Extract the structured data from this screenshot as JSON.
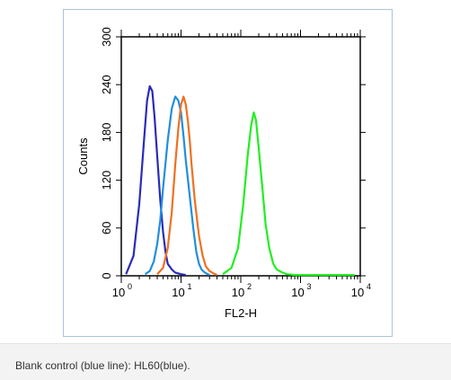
{
  "chart_data": {
    "type": "line",
    "title": "",
    "xlabel": "FL2-H",
    "ylabel": "Counts",
    "x_scale": "log",
    "xlim": [
      1,
      10000
    ],
    "ylim": [
      0,
      300
    ],
    "x_ticks": [
      {
        "value": 1,
        "base": "10",
        "exp": "0"
      },
      {
        "value": 10,
        "base": "10",
        "exp": "1"
      },
      {
        "value": 100,
        "base": "10",
        "exp": "2"
      },
      {
        "value": 1000,
        "base": "10",
        "exp": "3"
      },
      {
        "value": 10000,
        "base": "10",
        "exp": "4"
      }
    ],
    "y_ticks": [
      "0",
      "60",
      "120",
      "180",
      "240",
      "300"
    ],
    "grid": false,
    "legend": "none",
    "series": [
      {
        "color": "#2b2bb8",
        "x": [
          1.2,
          1.6,
          2.0,
          2.4,
          2.7,
          3.0,
          3.3,
          3.6,
          4.0,
          4.5,
          5.0,
          5.5,
          6.0,
          7.0,
          8.0,
          10.0,
          12.0
        ],
        "y": [
          2,
          25,
          90,
          170,
          220,
          238,
          232,
          200,
          150,
          95,
          55,
          30,
          15,
          8,
          4,
          2,
          1
        ]
      },
      {
        "color": "#1f8fe0",
        "x": [
          2.5,
          3.0,
          3.5,
          4.0,
          4.5,
          5.0,
          6.0,
          7.0,
          8.0,
          9.0,
          10.0,
          11.0,
          12.0,
          14.0,
          16.0,
          18.0,
          20.0,
          22.0,
          25.0,
          30.0
        ],
        "y": [
          2,
          6,
          18,
          40,
          70,
          110,
          170,
          210,
          225,
          220,
          205,
          175,
          145,
          100,
          60,
          30,
          15,
          8,
          4,
          1
        ]
      },
      {
        "color": "#f07020",
        "x": [
          4.0,
          5.0,
          6.0,
          7.0,
          8.0,
          9.0,
          10.0,
          11.0,
          12.0,
          13.0,
          14.0,
          15.0,
          17.0,
          20.0,
          23.0,
          26.0,
          30.0,
          35.0,
          40.0
        ],
        "y": [
          2,
          10,
          35,
          80,
          140,
          185,
          215,
          225,
          215,
          195,
          170,
          140,
          95,
          50,
          25,
          12,
          6,
          3,
          1
        ]
      },
      {
        "color": "#22ee22",
        "x": [
          50,
          70,
          90,
          110,
          130,
          150,
          165,
          180,
          200,
          230,
          260,
          300,
          350,
          400,
          500,
          600,
          800,
          1000,
          2000,
          5000,
          8000
        ],
        "y": [
          2,
          10,
          35,
          90,
          150,
          190,
          205,
          195,
          160,
          110,
          65,
          35,
          15,
          8,
          4,
          2,
          1,
          1,
          1,
          1,
          1
        ]
      }
    ]
  },
  "caption": "Blank control (blue line): HL60(blue)."
}
